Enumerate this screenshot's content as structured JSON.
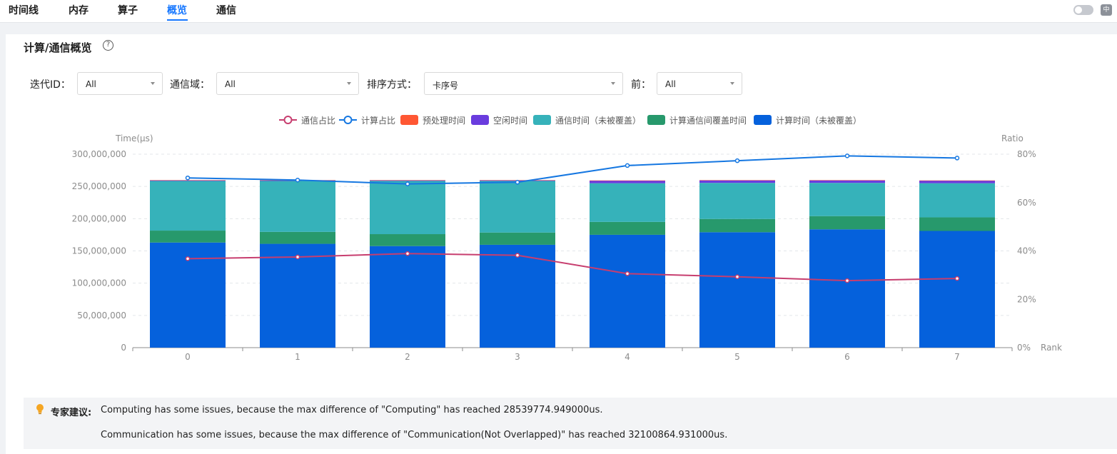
{
  "nav": {
    "tabs": [
      "时间线",
      "内存",
      "算子",
      "概览",
      "通信"
    ],
    "active_index": 3
  },
  "header_icons": {
    "toggle": "theme-toggle",
    "language": "language-switch-icon",
    "language_glyph": "中"
  },
  "section": {
    "title": "计算/通信概览",
    "help_icon": "question-circle-icon"
  },
  "filters": {
    "iteration": {
      "label": "迭代ID：",
      "value": "All"
    },
    "comm_domain": {
      "label": "通信域：",
      "value": "All"
    },
    "sort": {
      "label": "排序方式：",
      "value": "卡序号"
    },
    "top": {
      "label": "前：",
      "value": "All"
    }
  },
  "advice": {
    "icon": "lightbulb-icon",
    "label": "专家建议:",
    "lines": [
      "Computing has some issues, because the max difference of \"Computing\" has reached 28539774.949000us.",
      "Communication has some issues, because the max difference of \"Communication(Not Overlapped)\" has reached 32100864.931000us."
    ]
  },
  "colors": {
    "accent": "#1677ff",
    "compute": "#0561dc",
    "overlap": "#27996c",
    "comm": "#36b2ba",
    "idle": "#6a3cde",
    "preprocess": "#ff5733",
    "comm_ratio_line": "#c73e6f",
    "compute_ratio_line": "#1577e1"
  },
  "chart_data": {
    "type": "bar",
    "stacked": true,
    "legend_position": "top-center",
    "grid": true,
    "xlabel": "Rank",
    "ylabel": "Time(μs)",
    "y2label": "Ratio",
    "categories": [
      "0",
      "1",
      "2",
      "3",
      "4",
      "5",
      "6",
      "7"
    ],
    "ylim": [
      0,
      300000000
    ],
    "y_ticks": [
      "0",
      "50,000,000",
      "100,000,000",
      "150,000,000",
      "200,000,000",
      "250,000,000",
      "300,000,000"
    ],
    "y2lim": [
      0,
      80
    ],
    "y2_ticks": [
      "0%",
      "20%",
      "40%",
      "60%",
      "80%"
    ],
    "series": [
      {
        "name": "计算时间（未被覆盖）",
        "kind": "bar",
        "color": "#0561dc",
        "values": [
          163000000,
          161000000,
          157500000,
          159500000,
          175000000,
          179000000,
          183500000,
          181000000
        ]
      },
      {
        "name": "计算通信间覆盖时间",
        "kind": "bar",
        "color": "#27996c",
        "values": [
          18500000,
          18500000,
          18500000,
          19000000,
          20000000,
          20500000,
          20500000,
          21000000
        ]
      },
      {
        "name": "通信时间（未被覆盖）",
        "kind": "bar",
        "color": "#36b2ba",
        "values": [
          77000000,
          79000000,
          82500000,
          80000000,
          60000000,
          56000000,
          51500000,
          53000000
        ]
      },
      {
        "name": "空闲时间",
        "kind": "bar",
        "color": "#6a3cde",
        "values": [
          1000000,
          1000000,
          1000000,
          1000000,
          4000000,
          4000000,
          4000000,
          4000000
        ]
      },
      {
        "name": "预处理时间",
        "kind": "bar",
        "color": "#ff5733",
        "values": [
          300000,
          300000,
          300000,
          300000,
          300000,
          300000,
          300000,
          300000
        ]
      },
      {
        "name": "计算占比",
        "kind": "line",
        "axis": "right",
        "color": "#1577e1",
        "values": [
          70.2,
          69.3,
          67.7,
          68.4,
          75.3,
          77.3,
          79.3,
          78.4
        ]
      },
      {
        "name": "通信占比",
        "kind": "line",
        "axis": "right",
        "color": "#c73e6f",
        "values": [
          36.8,
          37.5,
          38.9,
          38.2,
          30.6,
          29.3,
          27.7,
          28.6
        ]
      }
    ],
    "legend_order": [
      "通信占比",
      "计算占比",
      "预处理时间",
      "空闲时间",
      "通信时间（未被覆盖）",
      "计算通信间覆盖时间",
      "计算时间（未被覆盖）"
    ]
  }
}
